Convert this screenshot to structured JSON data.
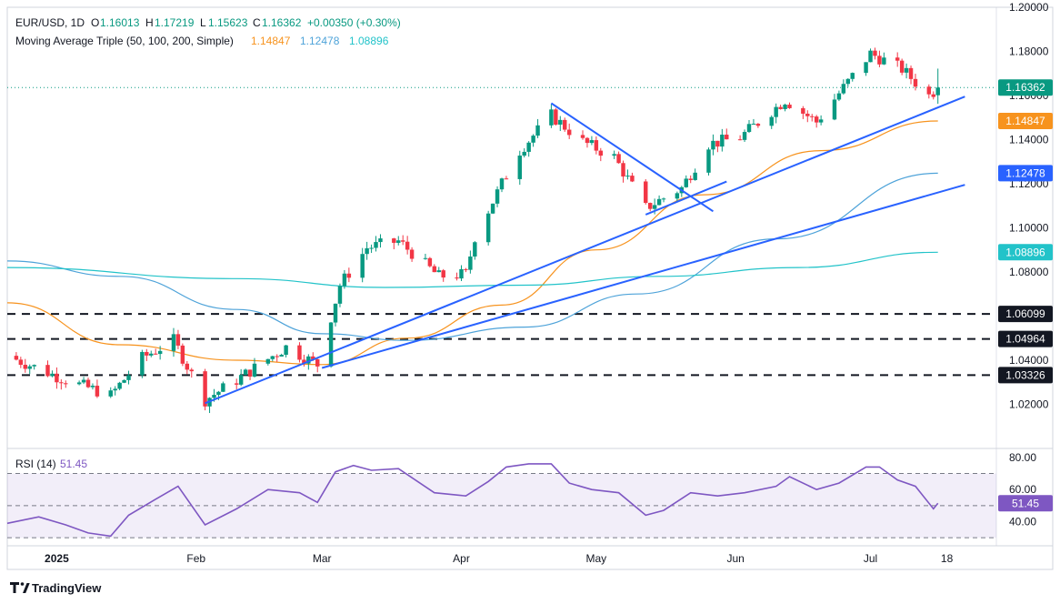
{
  "header": {
    "symbol": "EUR/USD, 1D",
    "open_label": "O",
    "open": "1.16013",
    "high_label": "H",
    "high": "1.17219",
    "low_label": "L",
    "low": "1.15623",
    "close_label": "C",
    "close": "1.16362",
    "change": "+0.00350 (+0.30%)",
    "ma_title": "Moving Average Triple (50, 100, 200, Simple)",
    "ma50": "1.14847",
    "ma100": "1.12478",
    "ma200": "1.08896"
  },
  "rsi": {
    "title": "RSI (14)",
    "value": "51.45"
  },
  "branding": {
    "name": "TradingView"
  },
  "colors": {
    "up": "#089981",
    "down": "#f23645",
    "ma50": "#f7931e",
    "ma100": "#4ea3d9",
    "ma200": "#22c3c9",
    "trendline": "#2962ff",
    "rsi_line": "#7e57c2",
    "rsi_band": "#7e57c2",
    "text_muted": "#131722"
  },
  "chart_data": [
    {
      "type": "candlestick",
      "title": "EUR/USD, 1D",
      "x_tick_labels": [
        "2025",
        "Feb",
        "Mar",
        "Apr",
        "May",
        "Jun",
        "Jul",
        "18"
      ],
      "x_ticks": [
        "2025-01-01",
        "2025-02-01",
        "2025-03-01",
        "2025-04-01",
        "2025-05-01",
        "2025-06-01",
        "2025-07-01",
        "2025-07-18"
      ],
      "x_range": [
        "2024-12-21",
        "2025-07-29"
      ],
      "y_range": [
        1.0,
        1.2
      ],
      "y_ticks": [
        1.02,
        1.04,
        1.06,
        1.08,
        1.1,
        1.12,
        1.14,
        1.16,
        1.18,
        1.2
      ],
      "y_tick_labels": [
        "1.02000",
        "1.04000",
        "1.06000",
        "1.08000",
        "1.10000",
        "1.12000",
        "1.14000",
        "1.16000",
        "1.18000",
        "1.20000"
      ],
      "anchors": [
        {
          "date": "2024-12-21",
          "close": 1.042
        },
        {
          "date": "2025-01-03",
          "close": 1.031
        },
        {
          "date": "2025-01-13",
          "close": 1.024
        },
        {
          "date": "2025-01-20",
          "close": 1.041
        },
        {
          "date": "2025-01-27",
          "close": 1.049
        },
        {
          "date": "2025-02-03",
          "close": 1.022
        },
        {
          "date": "2025-02-10",
          "close": 1.031
        },
        {
          "date": "2025-02-21",
          "close": 1.046
        },
        {
          "date": "2025-02-28",
          "close": 1.038
        },
        {
          "date": "2025-03-05",
          "close": 1.074
        },
        {
          "date": "2025-03-11",
          "close": 1.091
        },
        {
          "date": "2025-03-18",
          "close": 1.094
        },
        {
          "date": "2025-03-27",
          "close": 1.078
        },
        {
          "date": "2025-04-02",
          "close": 1.079
        },
        {
          "date": "2025-04-04",
          "close": 1.096
        },
        {
          "date": "2025-04-10",
          "close": 1.12
        },
        {
          "date": "2025-04-14",
          "close": 1.135
        },
        {
          "date": "2025-04-21",
          "close": 1.151
        },
        {
          "date": "2025-04-28",
          "close": 1.139
        },
        {
          "date": "2025-05-05",
          "close": 1.132
        },
        {
          "date": "2025-05-12",
          "close": 1.109
        },
        {
          "date": "2025-05-20",
          "close": 1.118
        },
        {
          "date": "2025-05-26",
          "close": 1.138
        },
        {
          "date": "2025-06-02",
          "close": 1.141
        },
        {
          "date": "2025-06-12",
          "close": 1.158
        },
        {
          "date": "2025-06-19",
          "close": 1.148
        },
        {
          "date": "2025-06-24",
          "close": 1.161
        },
        {
          "date": "2025-07-01",
          "close": 1.179
        },
        {
          "date": "2025-07-08",
          "close": 1.172
        },
        {
          "date": "2025-07-14",
          "close": 1.16
        },
        {
          "date": "2025-07-16",
          "close": 1.1636
        }
      ],
      "last_candle": {
        "date": "2025-07-16",
        "open": 1.16013,
        "high": 1.17219,
        "low": 1.15623,
        "close": 1.16362
      },
      "moving_averages": [
        {
          "name": "MA 50",
          "value": "1.14847",
          "points": [
            [
              "2024-12-21",
              1.066
            ],
            [
              "2025-01-15",
              1.047
            ],
            [
              "2025-02-10",
              1.04
            ],
            [
              "2025-03-01",
              1.038
            ],
            [
              "2025-03-20",
              1.05
            ],
            [
              "2025-04-10",
              1.065
            ],
            [
              "2025-05-01",
              1.09
            ],
            [
              "2025-05-25",
              1.115
            ],
            [
              "2025-06-20",
              1.135
            ],
            [
              "2025-07-16",
              1.14847
            ]
          ]
        },
        {
          "name": "MA 100",
          "value": "1.12478",
          "points": [
            [
              "2024-12-21",
              1.085
            ],
            [
              "2025-01-15",
              1.078
            ],
            [
              "2025-02-10",
              1.063
            ],
            [
              "2025-03-01",
              1.052
            ],
            [
              "2025-03-20",
              1.049
            ],
            [
              "2025-04-15",
              1.055
            ],
            [
              "2025-05-10",
              1.07
            ],
            [
              "2025-06-10",
              1.095
            ],
            [
              "2025-07-16",
              1.12478
            ]
          ]
        },
        {
          "name": "MA 200",
          "value": "1.08896",
          "points": [
            [
              "2024-12-21",
              1.082
            ],
            [
              "2025-02-10",
              1.077
            ],
            [
              "2025-03-15",
              1.073
            ],
            [
              "2025-04-15",
              1.074
            ],
            [
              "2025-05-15",
              1.078
            ],
            [
              "2025-06-15",
              1.082
            ],
            [
              "2025-07-16",
              1.08896
            ]
          ]
        }
      ],
      "price_labels": [
        {
          "value": "1.16362",
          "price": 1.16362
        },
        {
          "value": "1.14847",
          "price": 1.14847
        },
        {
          "value": "1.12478",
          "price": 1.12478
        },
        {
          "value": "1.08896",
          "price": 1.08896
        },
        {
          "value": "1.06099",
          "price": 1.06099
        },
        {
          "value": "1.04964",
          "price": 1.04964
        },
        {
          "value": "1.03326",
          "price": 1.03326
        }
      ],
      "horizontal_levels": [
        1.06099,
        1.04964,
        1.03326
      ],
      "trendlines": [
        {
          "name": "rising support from February low",
          "from": [
            "2025-02-03",
            1.0205
          ],
          "to": [
            "2025-07-22",
            1.1595
          ]
        },
        {
          "name": "lower rising trendline",
          "from": [
            "2025-03-01",
            1.0365
          ],
          "to": [
            "2025-07-22",
            1.1195
          ]
        },
        {
          "name": "falling resistance from April high",
          "from": [
            "2025-04-21",
            1.1565
          ],
          "to": [
            "2025-05-27",
            1.1075
          ]
        },
        {
          "name": "short support from May low",
          "from": [
            "2025-05-12",
            1.106
          ],
          "to": [
            "2025-05-30",
            1.121
          ]
        }
      ]
    },
    {
      "type": "line",
      "title": "RSI (14)",
      "y_range": [
        25,
        85
      ],
      "y_ticks": [
        40,
        60,
        80
      ],
      "y_tick_labels": [
        "40.00",
        "60.00",
        "80.00"
      ],
      "bands": [
        30,
        50,
        70
      ],
      "current_value": 51.45,
      "points": [
        [
          "2024-12-21",
          39
        ],
        [
          "2024-12-28",
          43
        ],
        [
          "2025-01-03",
          38
        ],
        [
          "2025-01-08",
          33
        ],
        [
          "2025-01-13",
          31
        ],
        [
          "2025-01-17",
          44
        ],
        [
          "2025-01-23",
          54
        ],
        [
          "2025-01-28",
          62
        ],
        [
          "2025-02-03",
          38
        ],
        [
          "2025-02-10",
          48
        ],
        [
          "2025-02-17",
          60
        ],
        [
          "2025-02-24",
          58
        ],
        [
          "2025-02-28",
          52
        ],
        [
          "2025-03-04",
          71
        ],
        [
          "2025-03-08",
          75
        ],
        [
          "2025-03-12",
          72
        ],
        [
          "2025-03-18",
          73
        ],
        [
          "2025-03-26",
          58
        ],
        [
          "2025-04-02",
          56
        ],
        [
          "2025-04-07",
          65
        ],
        [
          "2025-04-11",
          74
        ],
        [
          "2025-04-16",
          76
        ],
        [
          "2025-04-21",
          76
        ],
        [
          "2025-04-25",
          64
        ],
        [
          "2025-04-30",
          60
        ],
        [
          "2025-05-06",
          58
        ],
        [
          "2025-05-12",
          44
        ],
        [
          "2025-05-16",
          47
        ],
        [
          "2025-05-22",
          58
        ],
        [
          "2025-05-28",
          56
        ],
        [
          "2025-06-03",
          58
        ],
        [
          "2025-06-10",
          62
        ],
        [
          "2025-06-13",
          68
        ],
        [
          "2025-06-19",
          60
        ],
        [
          "2025-06-24",
          64
        ],
        [
          "2025-06-30",
          74
        ],
        [
          "2025-07-03",
          74
        ],
        [
          "2025-07-07",
          66
        ],
        [
          "2025-07-11",
          62
        ],
        [
          "2025-07-15",
          48
        ],
        [
          "2025-07-16",
          51.45
        ]
      ]
    }
  ]
}
